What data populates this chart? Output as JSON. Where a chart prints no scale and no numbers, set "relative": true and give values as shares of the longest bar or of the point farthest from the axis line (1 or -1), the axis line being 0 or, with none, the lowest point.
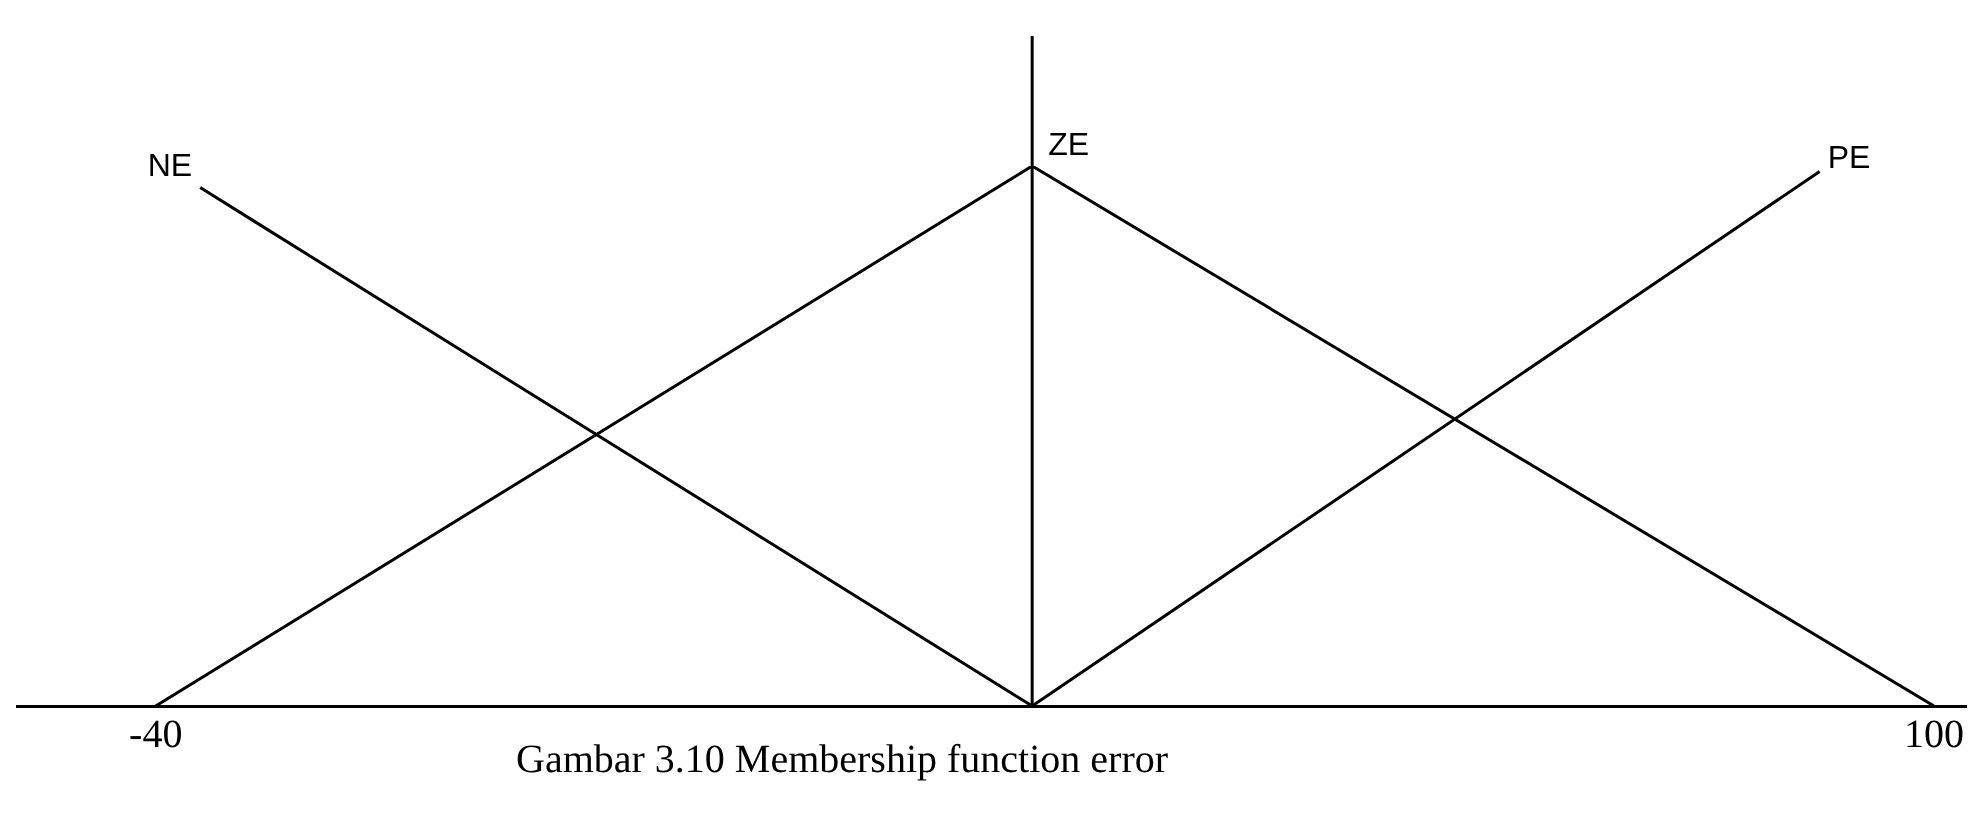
{
  "chart_data": {
    "type": "line",
    "relative": true,
    "xlim": [
      -51,
      102.5
    ],
    "xticks": [
      -40,
      100
    ],
    "grid": false,
    "legend": false,
    "marker": "none",
    "line_style": "solid",
    "series": [
      {
        "name": "NE",
        "color": "#000000",
        "x": [
          -36.5,
          29
        ],
        "values": [
          0.96,
          0
        ]
      },
      {
        "name": "ZE",
        "color": "#000000",
        "x": [
          -40,
          29,
          100
        ],
        "values": [
          0,
          1,
          0
        ]
      },
      {
        "name": "PE",
        "color": "#000000",
        "x": [
          29,
          91
        ],
        "values": [
          0,
          0.99
        ]
      }
    ],
    "ref_lines": [
      {
        "axis": "x",
        "value": 29,
        "label": null,
        "color": "#000000"
      }
    ],
    "annotations": [
      "Gambar 3.10 Membership function error"
    ]
  }
}
